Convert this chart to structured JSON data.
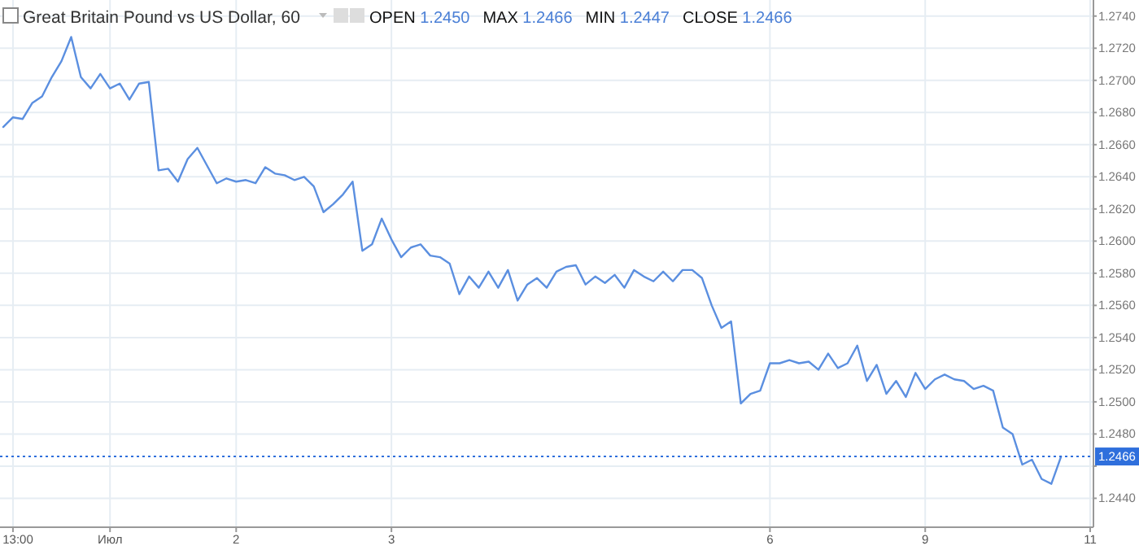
{
  "chart_data": {
    "type": "line",
    "title": "Great Britain Pound vs US Dollar, 60",
    "annotations": [
      "OPEN 1.2450",
      "MAX 1.2466",
      "MIN 1.2447",
      "CLOSE 1.2466"
    ],
    "categories": [
      null,
      "13:00",
      null,
      null,
      null,
      null,
      null,
      null,
      null,
      null,
      null,
      "Июл",
      null,
      null,
      null,
      null,
      null,
      null,
      null,
      null,
      null,
      null,
      null,
      null,
      "2",
      null,
      null,
      null,
      null,
      null,
      null,
      null,
      null,
      null,
      null,
      null,
      null,
      null,
      null,
      null,
      "3",
      null,
      null,
      null,
      null,
      null,
      null,
      null,
      null,
      null,
      null,
      null,
      null,
      null,
      null,
      null,
      null,
      null,
      null,
      null,
      null,
      null,
      null,
      null,
      null,
      null,
      null,
      null,
      null,
      null,
      null,
      null,
      null,
      null,
      null,
      null,
      null,
      null,
      null,
      "6",
      null,
      null,
      null,
      null,
      null,
      null,
      null,
      null,
      null,
      null,
      null,
      null,
      null,
      null,
      null,
      "9",
      null,
      null,
      null,
      null,
      null,
      null,
      null,
      null,
      null,
      null,
      null,
      null,
      null,
      null,
      null,
      null,
      "11"
    ],
    "series": [
      {
        "color": "#5b8fe0",
        "values": [
          1.2671,
          1.2677,
          1.2676,
          1.2686,
          1.269,
          1.2702,
          1.2712,
          1.2727,
          1.2702,
          1.2695,
          1.2704,
          1.2695,
          1.2698,
          1.2688,
          1.2698,
          1.2699,
          1.2644,
          1.2645,
          1.2637,
          1.2651,
          1.2658,
          1.2647,
          1.2636,
          1.2639,
          1.2637,
          1.2638,
          1.2636,
          1.2646,
          1.2642,
          1.2641,
          1.2638,
          1.264,
          1.2634,
          1.2618,
          1.2623,
          1.2629,
          1.2637,
          1.2594,
          1.2598,
          1.2614,
          1.2601,
          1.259,
          1.2596,
          1.2598,
          1.2591,
          1.259,
          1.2586,
          1.2567,
          1.2578,
          1.2571,
          1.2581,
          1.2571,
          1.2582,
          1.2563,
          1.2573,
          1.2577,
          1.2571,
          1.2581,
          1.2584,
          1.2585,
          1.2573,
          1.2578,
          1.2574,
          1.2579,
          1.2571,
          1.2582,
          1.2578,
          1.2575,
          1.2581,
          1.2575,
          1.2582,
          1.2582,
          1.2577,
          1.256,
          1.2546,
          1.255,
          1.2499,
          1.2505,
          1.2507,
          1.2524,
          1.2524,
          1.2526,
          1.2524,
          1.2525,
          1.252,
          1.253,
          1.2521,
          1.2524,
          1.2535,
          1.2513,
          1.2523,
          1.2505,
          1.2513,
          1.2503,
          1.2518,
          1.2508,
          1.2514,
          1.2517,
          1.2514,
          1.2513,
          1.2508,
          1.251,
          1.2507,
          1.2484,
          1.248,
          1.2461,
          1.2464,
          1.2452,
          1.2449,
          1.2466,
          null,
          null,
          null
        ]
      }
    ],
    "ylim": [
      1.2422,
      1.275
    ],
    "yticks": [
      {
        "value": 1.244,
        "label": "1.2440"
      },
      {
        "value": 1.246,
        "label": null
      },
      {
        "value": 1.248,
        "label": "1.2480"
      },
      {
        "value": 1.25,
        "label": "1.2500"
      },
      {
        "value": 1.252,
        "label": "1.2520"
      },
      {
        "value": 1.254,
        "label": "1.2540"
      },
      {
        "value": 1.256,
        "label": "1.2560"
      },
      {
        "value": 1.258,
        "label": "1.2580"
      },
      {
        "value": 1.26,
        "label": "1.2600"
      },
      {
        "value": 1.262,
        "label": "1.2620"
      },
      {
        "value": 1.264,
        "label": "1.2640"
      },
      {
        "value": 1.266,
        "label": "1.2660"
      },
      {
        "value": 1.268,
        "label": "1.2680"
      },
      {
        "value": 1.27,
        "label": "1.2700"
      },
      {
        "value": 1.272,
        "label": "1.2720"
      },
      {
        "value": 1.274,
        "label": "1.2740"
      }
    ],
    "ref_lines": [
      {
        "axis": "y",
        "value": 1.2466,
        "label": "1.2466",
        "color": "#2f6fdc",
        "line_style": "dotted"
      }
    ],
    "grid": true,
    "marker": "none",
    "line_style": "solid"
  }
}
